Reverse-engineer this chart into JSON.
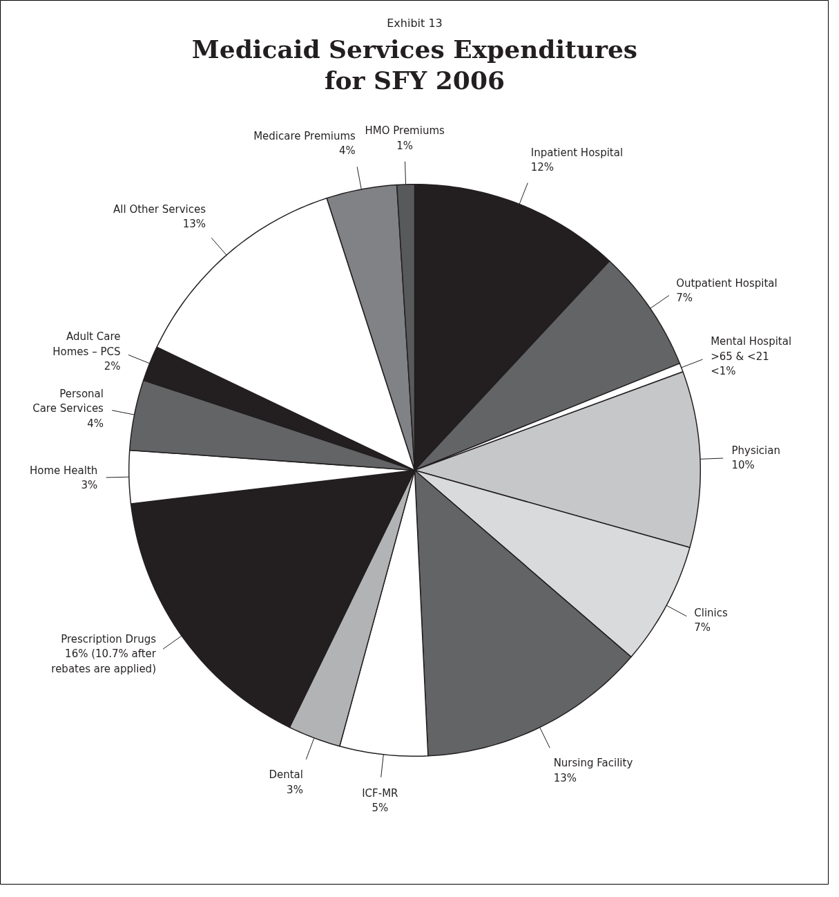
{
  "chart_data": {
    "type": "pie",
    "subtitle": "Exhibit 13",
    "title": "Medicaid Services Expenditures\nfor SFY 2006",
    "categories": [
      "Inpatient Hospital",
      "Outpatient Hospital",
      "Mental Hospital\n>65 & <21",
      "Physician",
      "Clinics",
      "Nursing Facility",
      "ICF-MR",
      "Dental",
      "Prescription Drugs",
      "Home Health",
      "Personal\nCare Services",
      "Adult Care\nHomes – PCS",
      "All Other Services",
      "Medicare Premiums",
      "HMO Premiums"
    ],
    "values": [
      12,
      7,
      0.5,
      10,
      7,
      13,
      5,
      3,
      16,
      3,
      4,
      2,
      13,
      4,
      1
    ],
    "value_labels": [
      "12%",
      "7%",
      "<1%",
      "10%",
      "7%",
      "13%",
      "5%",
      "3%",
      "16% (10.7% after\nrebates are applied)",
      "3%",
      "4%",
      "2%",
      "13%",
      "4%",
      "1%"
    ],
    "colors": [
      "#231f20",
      "#636466",
      "#ffffff",
      "#c6c7c9",
      "#d9dadb",
      "#636466",
      "#ffffff",
      "#b2b3b5",
      "#231f20",
      "#ffffff",
      "#636466",
      "#231f20",
      "#ffffff",
      "#808285",
      "#58595b"
    ]
  }
}
